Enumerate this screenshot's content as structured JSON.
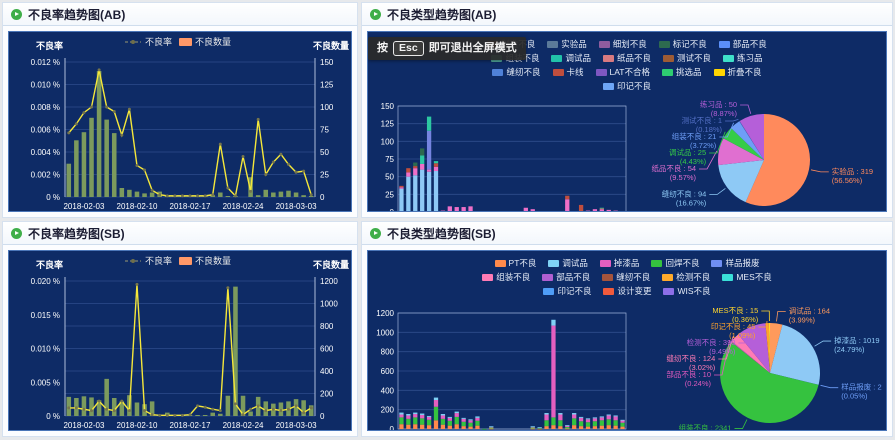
{
  "page": {
    "background": "#e7e9ec",
    "chart_background": "#0e2b66"
  },
  "chart_data": [
    {
      "panel": "AB",
      "type": "bar",
      "subtype": "line+bar dual axis",
      "title": "不良率趋势图(AB)",
      "legend": [
        {
          "label": "不良率",
          "symbol": "line"
        },
        {
          "label": "不良数量",
          "symbol": "rect",
          "color": "#ff9868"
        }
      ],
      "y_left": {
        "name": "不良率",
        "max": 0.012,
        "ticks": [
          "0 %",
          "0.002 %",
          "0.004 %",
          "0.006 %",
          "0.008 %",
          "0.010 %",
          "0.012 %"
        ]
      },
      "y_right": {
        "name": "不良数量",
        "max": 150,
        "ticks": [
          "0",
          "25",
          "50",
          "75",
          "100",
          "125",
          "150"
        ]
      },
      "x_tick_labels": [
        "2018-02-03",
        "2018-02-10",
        "2018-02-17",
        "2018-02-24",
        "2018-03-03"
      ],
      "x_tick_index": [
        2,
        9,
        16,
        23,
        30
      ],
      "n_points": 33,
      "grid": true,
      "bar_series": {
        "name": "不良数量",
        "color": "#7c9a5d",
        "values": [
          37,
          63,
          72,
          88,
          140,
          86,
          71,
          10,
          8,
          6,
          4,
          5,
          6,
          2,
          1,
          1,
          1,
          1,
          1,
          2,
          5,
          1,
          1,
          0,
          22,
          2,
          8,
          5,
          6,
          7,
          5,
          2,
          1
        ]
      },
      "line_series": {
        "name": "不良率",
        "color": "#f5e73a",
        "values": [
          0.0057,
          0.0065,
          0.0075,
          0.008,
          0.0113,
          0.008,
          0.0076,
          0.0055,
          0.0078,
          0.0028,
          0.0024,
          0.0006,
          0.0002,
          0.0001,
          0.0001,
          0.0001,
          0.0001,
          0.0001,
          0.0001,
          0.0002,
          0.0047,
          0.0008,
          0.0001,
          0.0036,
          0.0005,
          0.0069,
          0.002,
          0.0031,
          0.0038,
          0.0029,
          0.0022,
          0.0023,
          0.0002
        ]
      }
    },
    {
      "panel": "AB",
      "type": "bar",
      "subtype": "stacked bars + pie",
      "title": "不良类型趋势图(AB)",
      "toast": {
        "prefix": "按",
        "key": "Esc",
        "suffix": "即可退出全屏模式"
      },
      "legend_rows": [
        [
          {
            "label": "制造不良",
            "color": "#7a4b42"
          },
          {
            "label": "实验品",
            "color": "#5b7a99"
          },
          {
            "label": "细划不良",
            "color": "#8e5c9e"
          },
          {
            "label": "标记不良",
            "color": "#2d6a4f"
          },
          {
            "label": "部品不良",
            "color": "#5b8ff9"
          }
        ],
        [
          {
            "label": "组装不良",
            "color": "#4ea397"
          },
          {
            "label": "调试品",
            "color": "#22c3aa"
          },
          {
            "label": "纸品不良",
            "color": "#d87a80"
          },
          {
            "label": "测试不良",
            "color": "#9d5b35"
          },
          {
            "label": "练习品",
            "color": "#3fe0c8"
          }
        ],
        [
          {
            "label": "缝纫不良",
            "color": "#4f81d8"
          },
          {
            "label": "卡线",
            "color": "#bf4e3e"
          },
          {
            "label": "LAT不合格",
            "color": "#7e57c2"
          },
          {
            "label": "挑选品",
            "color": "#2ecc71"
          },
          {
            "label": "折叠不良",
            "color": "#ffd500"
          }
        ],
        [
          {
            "label": "印记不良",
            "color": "#6ea6f7"
          }
        ]
      ],
      "y_axis": {
        "max": 150,
        "ticks": [
          "0",
          "25",
          "50",
          "75",
          "100",
          "125",
          "150"
        ]
      },
      "x_tick_labels": [
        "2018-02-03",
        "2018-02-12",
        "2018-02-21",
        "2018-03-02"
      ],
      "x_tick_index": [
        2,
        11,
        20,
        29
      ],
      "n_points": 33,
      "series": [
        {
          "name": "印记不良",
          "color": "#8ec9f5",
          "values": [
            33,
            50,
            52,
            60,
            57,
            58,
            0,
            0,
            0,
            0,
            0,
            0,
            0,
            0,
            0,
            0,
            0,
            0,
            0,
            0,
            0,
            0,
            0,
            0,
            0,
            0,
            0,
            0,
            0,
            0,
            0,
            0,
            0
          ]
        },
        {
          "name": "缝纫不良",
          "color": "#ef6fc8",
          "values": [
            2,
            6,
            10,
            8,
            3,
            6,
            2,
            8,
            7,
            7,
            8,
            0,
            0,
            0,
            0,
            0,
            0,
            0,
            6,
            4,
            0,
            0,
            0,
            0,
            18,
            0,
            0,
            2,
            4,
            4,
            3,
            2,
            1
          ]
        },
        {
          "name": "卡线",
          "color": "#bf4e3e",
          "values": [
            2,
            6,
            3,
            0,
            0,
            5,
            0,
            0,
            0,
            0,
            0,
            0,
            0,
            0,
            0,
            0,
            0,
            0,
            0,
            0,
            0,
            0,
            0,
            0,
            5,
            0,
            10,
            0,
            0,
            1,
            0,
            0,
            0
          ]
        },
        {
          "name": "LAT不合格",
          "color": "#7584e0",
          "values": [
            0,
            0,
            0,
            0,
            55,
            0,
            0,
            0,
            0,
            0,
            0,
            0,
            0,
            0,
            0,
            0,
            0,
            0,
            0,
            0,
            0,
            0,
            0,
            0,
            0,
            0,
            0,
            0,
            0,
            0,
            0,
            0,
            0
          ]
        },
        {
          "name": "挑选品",
          "color": "#2cc8a2",
          "values": [
            0,
            0,
            0,
            12,
            20,
            3,
            0,
            0,
            0,
            0,
            0,
            0,
            0,
            0,
            0,
            0,
            0,
            0,
            0,
            0,
            0,
            0,
            0,
            0,
            0,
            0,
            0,
            0,
            0,
            1,
            0,
            0,
            0
          ]
        },
        {
          "name": "标记不良",
          "color": "#2d6a4f",
          "values": [
            0,
            0,
            5,
            10,
            0,
            0,
            0,
            0,
            0,
            0,
            0,
            0,
            0,
            0,
            0,
            0,
            0,
            0,
            0,
            0,
            0,
            0,
            0,
            0,
            0,
            0,
            0,
            0,
            0,
            0,
            0,
            0,
            0
          ]
        }
      ],
      "pie": {
        "slices": [
          {
            "name": "实验品",
            "value": 319,
            "pct": "56.56%",
            "color": "#ff8a5c"
          },
          {
            "name": "缝纫不良",
            "value": 94,
            "pct": "16.67%",
            "color": "#8ec9f5"
          },
          {
            "name": "纸品不良",
            "value": 54,
            "pct": "9.57%",
            "color": "#e06fd0"
          },
          {
            "name": "调试品",
            "value": 25,
            "pct": "4.43%",
            "color": "#35cc47"
          },
          {
            "name": "组装不良",
            "value": 21,
            "pct": "3.72%",
            "color": "#6e9ef7"
          },
          {
            "name": "测试不良",
            "value": 1,
            "pct": "0.18%",
            "color": "#5470c6"
          },
          {
            "name": "练习品",
            "value": 50,
            "pct": "8.87%",
            "color": "#b55fd9"
          }
        ]
      }
    },
    {
      "panel": "SB",
      "type": "bar",
      "subtype": "line+bar dual axis",
      "title": "不良率趋势图(SB)",
      "legend": [
        {
          "label": "不良率",
          "symbol": "line"
        },
        {
          "label": "不良数量",
          "symbol": "rect",
          "color": "#ff9868"
        }
      ],
      "y_left": {
        "name": "不良率",
        "max": 0.02,
        "ticks": [
          "0 %",
          "0.005 %",
          "0.010 %",
          "0.015 %",
          "0.020 %"
        ]
      },
      "y_right": {
        "name": "不良数量",
        "max": 1200,
        "ticks": [
          "0",
          "200",
          "400",
          "600",
          "800",
          "1000",
          "1200"
        ]
      },
      "x_tick_labels": [
        "2018-02-03",
        "2018-02-10",
        "2018-02-17",
        "2018-02-24",
        "2018-03-03"
      ],
      "x_tick_index": [
        2,
        9,
        16,
        23,
        30
      ],
      "n_points": 33,
      "grid": true,
      "bar_series": {
        "name": "不良数量",
        "color": "#7c9a5d",
        "values": [
          170,
          160,
          175,
          165,
          140,
          330,
          160,
          130,
          185,
          120,
          105,
          130,
          5,
          30,
          2,
          1,
          1,
          1,
          2,
          30,
          20,
          180,
          1150,
          180,
          40,
          170,
          130,
          110,
          120,
          130,
          150,
          140,
          95
        ]
      },
      "line_series": {
        "name": "不良率",
        "color": "#f5e73a",
        "values": [
          0.0012,
          0.0012,
          0.001,
          0.0008,
          0.0022,
          0.001,
          0.0008,
          0.0022,
          0.0008,
          0.0195,
          0.0008,
          0.0002,
          0.0001,
          0.0001,
          0.0001,
          0.0001,
          0.0002,
          0.0015,
          0.0013,
          0.001,
          0.0008,
          0.019,
          0.0018,
          0.0002,
          0.001,
          0.0015,
          0.0008,
          0.001,
          0.0008,
          0.001,
          0.0015,
          0.0005,
          0.0012
        ]
      }
    },
    {
      "panel": "SB",
      "type": "bar",
      "subtype": "stacked bars + pie",
      "title": "不良类型趋势图(SB)",
      "legend_rows": [
        [
          {
            "label": "PT不良",
            "color": "#ff8a4b"
          },
          {
            "label": "调试品",
            "color": "#7fd2f5"
          },
          {
            "label": "掉漆品",
            "color": "#e45fc0"
          },
          {
            "label": "回焊不良",
            "color": "#35c23f"
          },
          {
            "label": "样品报废",
            "color": "#6f8ef2"
          }
        ],
        [
          {
            "label": "组装不良",
            "color": "#ff7bb5"
          },
          {
            "label": "部品不良",
            "color": "#b05fd0"
          },
          {
            "label": "缝纫不良",
            "color": "#a5543c"
          },
          {
            "label": "检测不良",
            "color": "#ffaa2b"
          },
          {
            "label": "MES不良",
            "color": "#3ae0d8"
          }
        ],
        [
          {
            "label": "印记不良",
            "color": "#4f9df7"
          },
          {
            "label": "设计变更",
            "color": "#f05a3c"
          },
          {
            "label": "WIS不良",
            "color": "#8d6fe8"
          }
        ]
      ],
      "y_axis": {
        "max": 1200,
        "ticks": [
          "0",
          "200",
          "400",
          "600",
          "800",
          "1000",
          "1200"
        ]
      },
      "x_tick_labels": [
        "2018-02-03",
        "2018-02-12",
        "2018-02-21",
        "2018-03-02"
      ],
      "x_tick_index": [
        2,
        11,
        20,
        29
      ],
      "n_points": 33,
      "series": [
        {
          "name": "PT不良",
          "color": "#ff8a4b",
          "values": [
            50,
            45,
            50,
            45,
            40,
            90,
            45,
            35,
            50,
            30,
            25,
            35,
            0,
            5,
            0,
            0,
            0,
            0,
            0,
            5,
            3,
            30,
            40,
            30,
            5,
            40,
            30,
            25,
            30,
            35,
            40,
            35,
            25
          ]
        },
        {
          "name": "组装不良",
          "color": "#35c23f",
          "values": [
            70,
            60,
            70,
            65,
            55,
            140,
            60,
            50,
            75,
            45,
            40,
            50,
            2,
            10,
            0,
            0,
            0,
            0,
            0,
            10,
            5,
            60,
            80,
            60,
            15,
            70,
            50,
            45,
            50,
            55,
            60,
            55,
            40
          ]
        },
        {
          "name": "掉漆品",
          "color": "#e45fc0",
          "values": [
            30,
            35,
            35,
            35,
            30,
            70,
            35,
            30,
            40,
            30,
            25,
            30,
            0,
            10,
            0,
            0,
            0,
            0,
            0,
            10,
            8,
            60,
            950,
            60,
            15,
            40,
            35,
            30,
            30,
            30,
            40,
            40,
            25
          ]
        },
        {
          "name": "调试品",
          "color": "#7fd2f5",
          "values": [
            20,
            15,
            15,
            15,
            10,
            25,
            15,
            10,
            15,
            10,
            10,
            15,
            0,
            3,
            0,
            0,
            0,
            0,
            0,
            3,
            2,
            15,
            60,
            15,
            5,
            15,
            10,
            10,
            10,
            10,
            10,
            10,
            5
          ]
        }
      ],
      "pie": {
        "slices": [
          {
            "name": "调试品",
            "value": 164,
            "pct": "3.99%",
            "color": "#ff9a5c"
          },
          {
            "name": "掉漆品",
            "value": 1019,
            "pct": "24.79%",
            "color": "#8ec9f5"
          },
          {
            "name": "样品报废",
            "value": 2,
            "pct": "0.05%",
            "color": "#6e9ef7"
          },
          {
            "name": "组装不良",
            "value": 2341,
            "pct": "56.96%",
            "color": "#35c23f"
          },
          {
            "name": "部品不良",
            "value": 10,
            "pct": "0.24%",
            "color": "#e05abe"
          },
          {
            "name": "缝纫不良",
            "value": 124,
            "pct": "3.02%",
            "color": "#ff7bb5"
          },
          {
            "name": "检测不良",
            "value": 390,
            "pct": "9.49%",
            "color": "#b55fd9"
          },
          {
            "name": "印记不良",
            "value": 45,
            "pct": "1.09%",
            "color": "#ffa22b"
          },
          {
            "name": "MES不良",
            "value": 15,
            "pct": "0.36%",
            "color": "#ffd52e"
          }
        ]
      }
    }
  ]
}
